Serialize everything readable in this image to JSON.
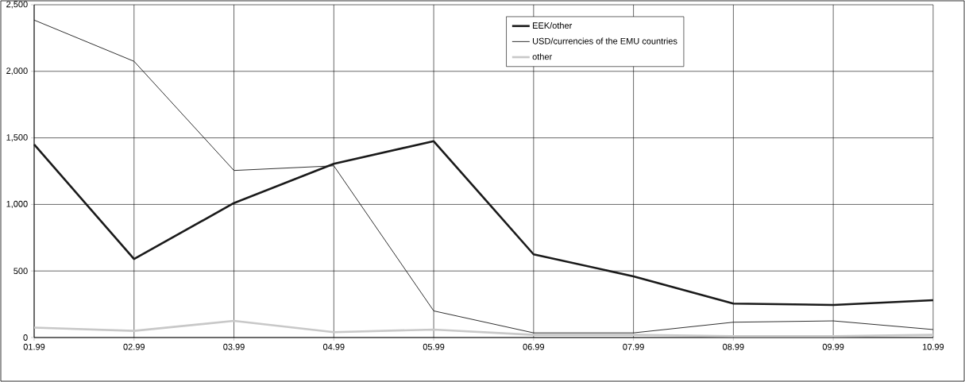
{
  "chart_data": {
    "type": "line",
    "categories": [
      "01.99",
      "02.99",
      "03.99",
      "04.99",
      "05.99",
      "06.99",
      "07.99",
      "08.99",
      "09.99",
      "10.99"
    ],
    "series": [
      {
        "name": "EEK/other",
        "color": "#1a1a1a",
        "values": [
          1450,
          590,
          1010,
          1305,
          1475,
          625,
          460,
          255,
          245,
          280
        ]
      },
      {
        "name": "USD/currencies of the EMU countries",
        "color": "#1a1a1a",
        "values": [
          2385,
          2075,
          1255,
          1290,
          200,
          35,
          35,
          115,
          125,
          60
        ]
      },
      {
        "name": "other",
        "color": "#c8c8c8",
        "values": [
          75,
          50,
          125,
          40,
          60,
          20,
          20,
          10,
          10,
          20
        ]
      }
    ],
    "ylim": [
      0,
      2500
    ],
    "yticks": [
      0,
      500,
      {
        "value": 1000,
        "label": "1,000"
      },
      {
        "value": 1500,
        "label": "1,500"
      },
      {
        "value": 2000,
        "label": "2,000"
      },
      {
        "value": 2500,
        "label": "2,500"
      }
    ],
    "grid": true,
    "legend": "top right",
    "marker": "none",
    "line_style": "solid"
  }
}
